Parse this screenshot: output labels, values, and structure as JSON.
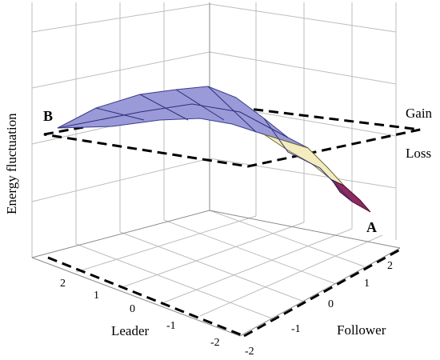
{
  "chart_data": {
    "type": "surface3d",
    "xlabel": "Leader",
    "ylabel": "Follower",
    "zlabel": "Energy fluctuation",
    "x_ticks": [
      "2",
      "1",
      "0",
      "-1",
      "-2"
    ],
    "y_ticks": [
      "-2",
      "-1",
      "0",
      "1",
      "2"
    ],
    "xlim": [
      -2,
      2
    ],
    "ylim": [
      -2,
      2
    ],
    "zero_plane_labels": {
      "above": "Gain",
      "below": "Loss"
    },
    "point_labels": [
      {
        "label": "B",
        "leader": 2,
        "follower": -2
      },
      {
        "label": "A",
        "leader": -2,
        "follower": 2
      }
    ],
    "colors": {
      "gain": "#9a9ad8",
      "loss_light": "#f2ecbe",
      "loss_dark": "#8e2a5e"
    },
    "grid": true
  }
}
